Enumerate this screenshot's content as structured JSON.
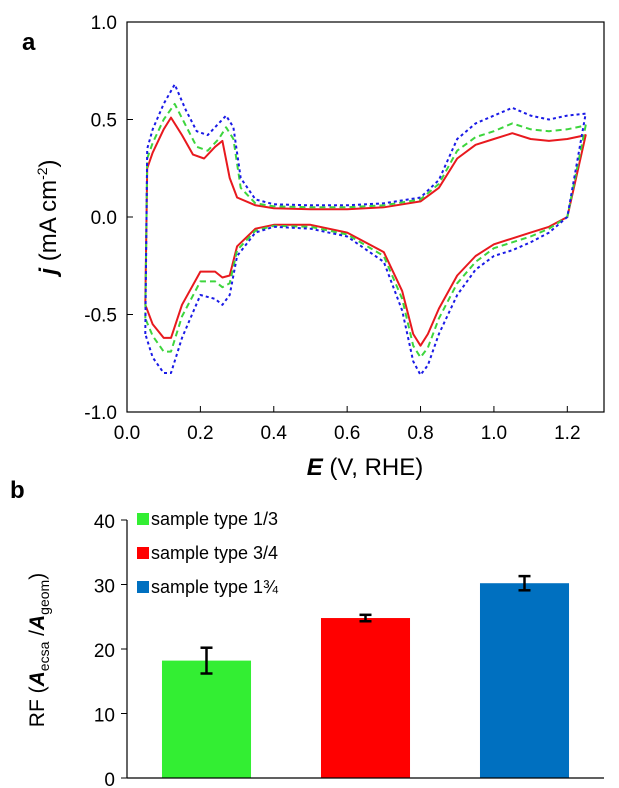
{
  "chart_data": [
    {
      "panel": "a",
      "type": "line",
      "title": "",
      "xlabel": {
        "sym": "E",
        "rest": " (V, RHE)"
      },
      "ylabel": {
        "sym": "j",
        "mid": " (mA cm",
        "sup": "-2",
        "end": ")"
      },
      "xlim": [
        0.0,
        1.3
      ],
      "ylim": [
        -1.0,
        1.0
      ],
      "xticks": [
        "0.0",
        "0.2",
        "0.4",
        "0.6",
        "0.8",
        "1.0",
        "1.2"
      ],
      "yticks": [
        "1.0",
        "0.5",
        "0.0",
        "-0.5",
        "-1.0"
      ],
      "grid": false,
      "series": [
        {
          "color": "#e8191e",
          "style": "solid",
          "anodic": {
            "x": [
              0.05,
              0.055,
              0.07,
              0.1,
              0.12,
              0.15,
              0.18,
              0.21,
              0.24,
              0.26,
              0.28,
              0.3,
              0.35,
              0.4,
              0.5,
              0.6,
              0.7,
              0.8,
              0.85,
              0.9,
              0.95,
              1.0,
              1.05,
              1.1,
              1.15,
              1.2,
              1.25
            ],
            "y": [
              -0.45,
              0.25,
              0.33,
              0.45,
              0.51,
              0.42,
              0.32,
              0.3,
              0.36,
              0.39,
              0.2,
              0.1,
              0.06,
              0.045,
              0.04,
              0.04,
              0.05,
              0.08,
              0.15,
              0.3,
              0.37,
              0.4,
              0.43,
              0.4,
              0.39,
              0.4,
              0.42
            ]
          },
          "cathodic": {
            "x": [
              1.25,
              1.2,
              1.15,
              1.1,
              1.05,
              1.0,
              0.95,
              0.9,
              0.85,
              0.82,
              0.8,
              0.78,
              0.75,
              0.7,
              0.6,
              0.5,
              0.4,
              0.35,
              0.3,
              0.28,
              0.26,
              0.24,
              0.2,
              0.15,
              0.12,
              0.1,
              0.07,
              0.05
            ],
            "y": [
              0.42,
              0.0,
              -0.05,
              -0.08,
              -0.11,
              -0.14,
              -0.2,
              -0.3,
              -0.47,
              -0.6,
              -0.66,
              -0.6,
              -0.38,
              -0.18,
              -0.08,
              -0.04,
              -0.04,
              -0.06,
              -0.15,
              -0.3,
              -0.31,
              -0.28,
              -0.28,
              -0.45,
              -0.62,
              -0.62,
              -0.55,
              -0.45
            ]
          }
        },
        {
          "color": "#3dd53d",
          "style": "dashed",
          "anodic": {
            "x": [
              0.05,
              0.055,
              0.07,
              0.1,
              0.13,
              0.16,
              0.19,
              0.22,
              0.25,
              0.27,
              0.29,
              0.31,
              0.35,
              0.4,
              0.5,
              0.6,
              0.7,
              0.8,
              0.85,
              0.9,
              0.95,
              1.0,
              1.05,
              1.1,
              1.15,
              1.2,
              1.25
            ],
            "y": [
              -0.52,
              0.3,
              0.38,
              0.5,
              0.58,
              0.47,
              0.36,
              0.34,
              0.4,
              0.46,
              0.4,
              0.15,
              0.07,
              0.055,
              0.05,
              0.05,
              0.06,
              0.09,
              0.17,
              0.34,
              0.41,
              0.44,
              0.48,
              0.45,
              0.44,
              0.45,
              0.47
            ]
          },
          "cathodic": {
            "x": [
              1.25,
              1.2,
              1.15,
              1.1,
              1.05,
              1.0,
              0.95,
              0.9,
              0.85,
              0.82,
              0.8,
              0.78,
              0.75,
              0.7,
              0.6,
              0.5,
              0.4,
              0.35,
              0.3,
              0.28,
              0.26,
              0.24,
              0.2,
              0.15,
              0.12,
              0.1,
              0.07,
              0.05
            ],
            "y": [
              0.47,
              0.0,
              -0.06,
              -0.1,
              -0.13,
              -0.16,
              -0.23,
              -0.34,
              -0.52,
              -0.67,
              -0.72,
              -0.66,
              -0.42,
              -0.2,
              -0.09,
              -0.05,
              -0.045,
              -0.07,
              -0.17,
              -0.34,
              -0.36,
              -0.33,
              -0.33,
              -0.51,
              -0.69,
              -0.69,
              -0.61,
              -0.52
            ]
          }
        },
        {
          "color": "#1a1ae6",
          "style": "dotted",
          "anodic": {
            "x": [
              0.05,
              0.055,
              0.07,
              0.1,
              0.13,
              0.16,
              0.19,
              0.22,
              0.25,
              0.27,
              0.29,
              0.31,
              0.35,
              0.4,
              0.5,
              0.6,
              0.7,
              0.8,
              0.85,
              0.9,
              0.95,
              1.0,
              1.05,
              1.1,
              1.15,
              1.2,
              1.25
            ],
            "y": [
              -0.6,
              0.35,
              0.45,
              0.58,
              0.68,
              0.55,
              0.44,
              0.42,
              0.48,
              0.52,
              0.46,
              0.2,
              0.09,
              0.065,
              0.06,
              0.06,
              0.07,
              0.1,
              0.19,
              0.4,
              0.48,
              0.52,
              0.56,
              0.52,
              0.5,
              0.52,
              0.53
            ]
          },
          "cathodic": {
            "x": [
              1.25,
              1.2,
              1.15,
              1.1,
              1.05,
              1.0,
              0.95,
              0.9,
              0.85,
              0.82,
              0.8,
              0.78,
              0.75,
              0.7,
              0.6,
              0.5,
              0.4,
              0.35,
              0.3,
              0.28,
              0.26,
              0.24,
              0.2,
              0.15,
              0.12,
              0.1,
              0.07,
              0.05
            ],
            "y": [
              0.53,
              0.0,
              -0.08,
              -0.13,
              -0.17,
              -0.2,
              -0.27,
              -0.4,
              -0.6,
              -0.76,
              -0.81,
              -0.74,
              -0.48,
              -0.23,
              -0.1,
              -0.06,
              -0.05,
              -0.08,
              -0.2,
              -0.4,
              -0.45,
              -0.42,
              -0.4,
              -0.62,
              -0.8,
              -0.8,
              -0.72,
              -0.6
            ]
          }
        }
      ]
    },
    {
      "panel": "b",
      "type": "bar",
      "title": "",
      "xlabel": "",
      "ylabel": {
        "pre": "RF (",
        "a1": "A",
        "s1": "ecsa",
        "slash": " /",
        "a2": "A",
        "s2": "geom",
        "end": ")"
      },
      "ylim": [
        0,
        40
      ],
      "yticks": [
        "40",
        "30",
        "20",
        "10",
        "0"
      ],
      "grid": false,
      "series": [
        {
          "name": "sample type 1/3",
          "value": 18.2,
          "error": 2.0,
          "color": "#33ee33"
        },
        {
          "name": "sample type 3/4",
          "value": 24.8,
          "error": 0.5,
          "color": "#ff0000"
        },
        {
          "name": "sample type 1¾",
          "value": 30.2,
          "error": 1.1,
          "color": "#0070c0"
        }
      ]
    }
  ]
}
